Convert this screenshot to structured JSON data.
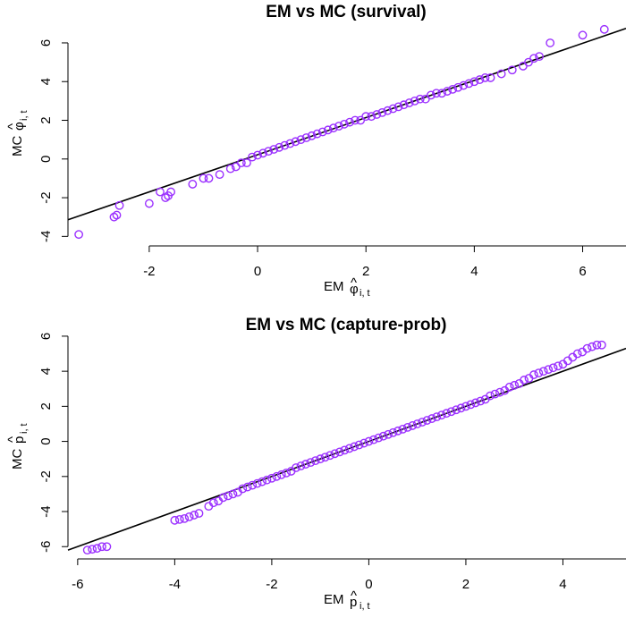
{
  "chart_data": [
    {
      "type": "scatter",
      "title": "EM vs MC (survival)",
      "xlabel": {
        "prefix": "EM ",
        "symbol": "φ",
        "hat": "^",
        "subscript": "i, t"
      },
      "ylabel": {
        "prefix": "MC ",
        "symbol": "φ",
        "hat": "^",
        "subscript": "i, t"
      },
      "xlim": [
        -3.5,
        6.8
      ],
      "ylim": [
        -4.4,
        7.2
      ],
      "xticks": [
        -2,
        0,
        2,
        4,
        6
      ],
      "yticks": [
        -4,
        -2,
        0,
        2,
        4,
        6
      ],
      "point_color": "#9b30ff",
      "fit_line": {
        "intercept": 0.22,
        "slope": 0.96
      },
      "series": [
        {
          "x": [
            -3.3,
            -2.65,
            -2.55,
            -2.6,
            -2.0,
            -1.8,
            -1.7,
            -1.6,
            -1.65,
            -1.2,
            -1.0,
            -0.9,
            -0.7,
            -0.5,
            -0.4,
            -0.3,
            -0.2,
            -0.1,
            0.0,
            0.1,
            0.2,
            0.3,
            0.4,
            0.5,
            0.6,
            0.7,
            0.8,
            0.9,
            1.0,
            1.1,
            1.2,
            1.3,
            1.4,
            1.5,
            1.6,
            1.7,
            1.8,
            1.9,
            2.0,
            2.1,
            2.2,
            2.3,
            2.4,
            2.5,
            2.6,
            2.7,
            2.8,
            2.9,
            3.0,
            3.1,
            3.2,
            3.3,
            3.4,
            3.5,
            3.6,
            3.7,
            3.8,
            3.9,
            4.0,
            4.1,
            4.2,
            4.3,
            4.5,
            4.7,
            4.9,
            5.0,
            5.1,
            5.2,
            5.4,
            6.0,
            6.4
          ],
          "y": [
            -3.9,
            -3.0,
            -2.4,
            -2.9,
            -2.3,
            -1.7,
            -2.0,
            -1.7,
            -1.9,
            -1.3,
            -1.0,
            -1.0,
            -0.8,
            -0.5,
            -0.4,
            -0.2,
            -0.2,
            0.1,
            0.2,
            0.3,
            0.4,
            0.5,
            0.6,
            0.7,
            0.8,
            0.9,
            1.0,
            1.1,
            1.2,
            1.3,
            1.4,
            1.5,
            1.6,
            1.7,
            1.8,
            1.9,
            2.0,
            2.0,
            2.2,
            2.2,
            2.3,
            2.4,
            2.5,
            2.6,
            2.7,
            2.8,
            2.9,
            3.0,
            3.1,
            3.1,
            3.3,
            3.4,
            3.4,
            3.5,
            3.6,
            3.7,
            3.8,
            3.9,
            4.0,
            4.1,
            4.2,
            4.2,
            4.4,
            4.6,
            4.8,
            5.0,
            5.2,
            5.3,
            6.0,
            6.4,
            6.7
          ]
        }
      ]
    },
    {
      "type": "scatter",
      "title": "EM vs MC (capture-prob)",
      "xlabel": {
        "prefix": "EM ",
        "symbol": "p",
        "hat": "^",
        "subscript": "i, t"
      },
      "ylabel": {
        "prefix": "MC ",
        "symbol": "p",
        "hat": "^",
        "subscript": "i, t"
      },
      "xlim": [
        -6.2,
        5.3
      ],
      "ylim": [
        -6.6,
        6.2
      ],
      "xticks": [
        -6,
        -4,
        -2,
        0,
        2,
        4
      ],
      "yticks": [
        -6,
        -4,
        -2,
        0,
        2,
        4,
        6
      ],
      "point_color": "#9b30ff",
      "fit_line": {
        "intercept": 0.0,
        "slope": 1.0
      },
      "series": [
        {
          "x": [
            -5.8,
            -5.7,
            -5.6,
            -5.5,
            -5.4,
            -4.0,
            -3.9,
            -3.8,
            -3.7,
            -3.6,
            -3.5,
            -3.3,
            -3.2,
            -3.1,
            -3.0,
            -2.9,
            -2.8,
            -2.7,
            -2.6,
            -2.5,
            -2.4,
            -2.3,
            -2.2,
            -2.1,
            -2.0,
            -1.9,
            -1.8,
            -1.7,
            -1.6,
            -1.5,
            -1.4,
            -1.3,
            -1.2,
            -1.1,
            -1.0,
            -0.9,
            -0.8,
            -0.7,
            -0.6,
            -0.5,
            -0.4,
            -0.3,
            -0.2,
            -0.1,
            0.0,
            0.1,
            0.2,
            0.3,
            0.4,
            0.5,
            0.6,
            0.7,
            0.8,
            0.9,
            1.0,
            1.1,
            1.2,
            1.3,
            1.4,
            1.5,
            1.6,
            1.7,
            1.8,
            1.9,
            2.0,
            2.1,
            2.2,
            2.3,
            2.4,
            2.5,
            2.6,
            2.7,
            2.8,
            2.9,
            3.0,
            3.1,
            3.2,
            3.3,
            3.4,
            3.5,
            3.6,
            3.7,
            3.8,
            3.9,
            4.0,
            4.1,
            4.2,
            4.3,
            4.4,
            4.5,
            4.6,
            4.7,
            4.8
          ],
          "y": [
            -6.2,
            -6.15,
            -6.1,
            -6.0,
            -6.0,
            -4.5,
            -4.45,
            -4.4,
            -4.3,
            -4.2,
            -4.1,
            -3.7,
            -3.5,
            -3.4,
            -3.2,
            -3.1,
            -3.0,
            -2.9,
            -2.7,
            -2.6,
            -2.5,
            -2.4,
            -2.3,
            -2.2,
            -2.1,
            -2.0,
            -1.9,
            -1.8,
            -1.7,
            -1.5,
            -1.4,
            -1.3,
            -1.2,
            -1.1,
            -1.0,
            -0.9,
            -0.8,
            -0.7,
            -0.6,
            -0.5,
            -0.4,
            -0.3,
            -0.2,
            -0.1,
            0.0,
            0.1,
            0.2,
            0.3,
            0.4,
            0.5,
            0.6,
            0.7,
            0.8,
            0.9,
            1.0,
            1.1,
            1.2,
            1.3,
            1.4,
            1.5,
            1.6,
            1.7,
            1.8,
            1.9,
            2.0,
            2.1,
            2.2,
            2.3,
            2.4,
            2.6,
            2.7,
            2.8,
            2.9,
            3.1,
            3.2,
            3.3,
            3.5,
            3.6,
            3.8,
            3.9,
            4.0,
            4.1,
            4.2,
            4.3,
            4.4,
            4.6,
            4.8,
            5.0,
            5.1,
            5.3,
            5.4,
            5.5,
            5.5
          ]
        }
      ]
    }
  ]
}
